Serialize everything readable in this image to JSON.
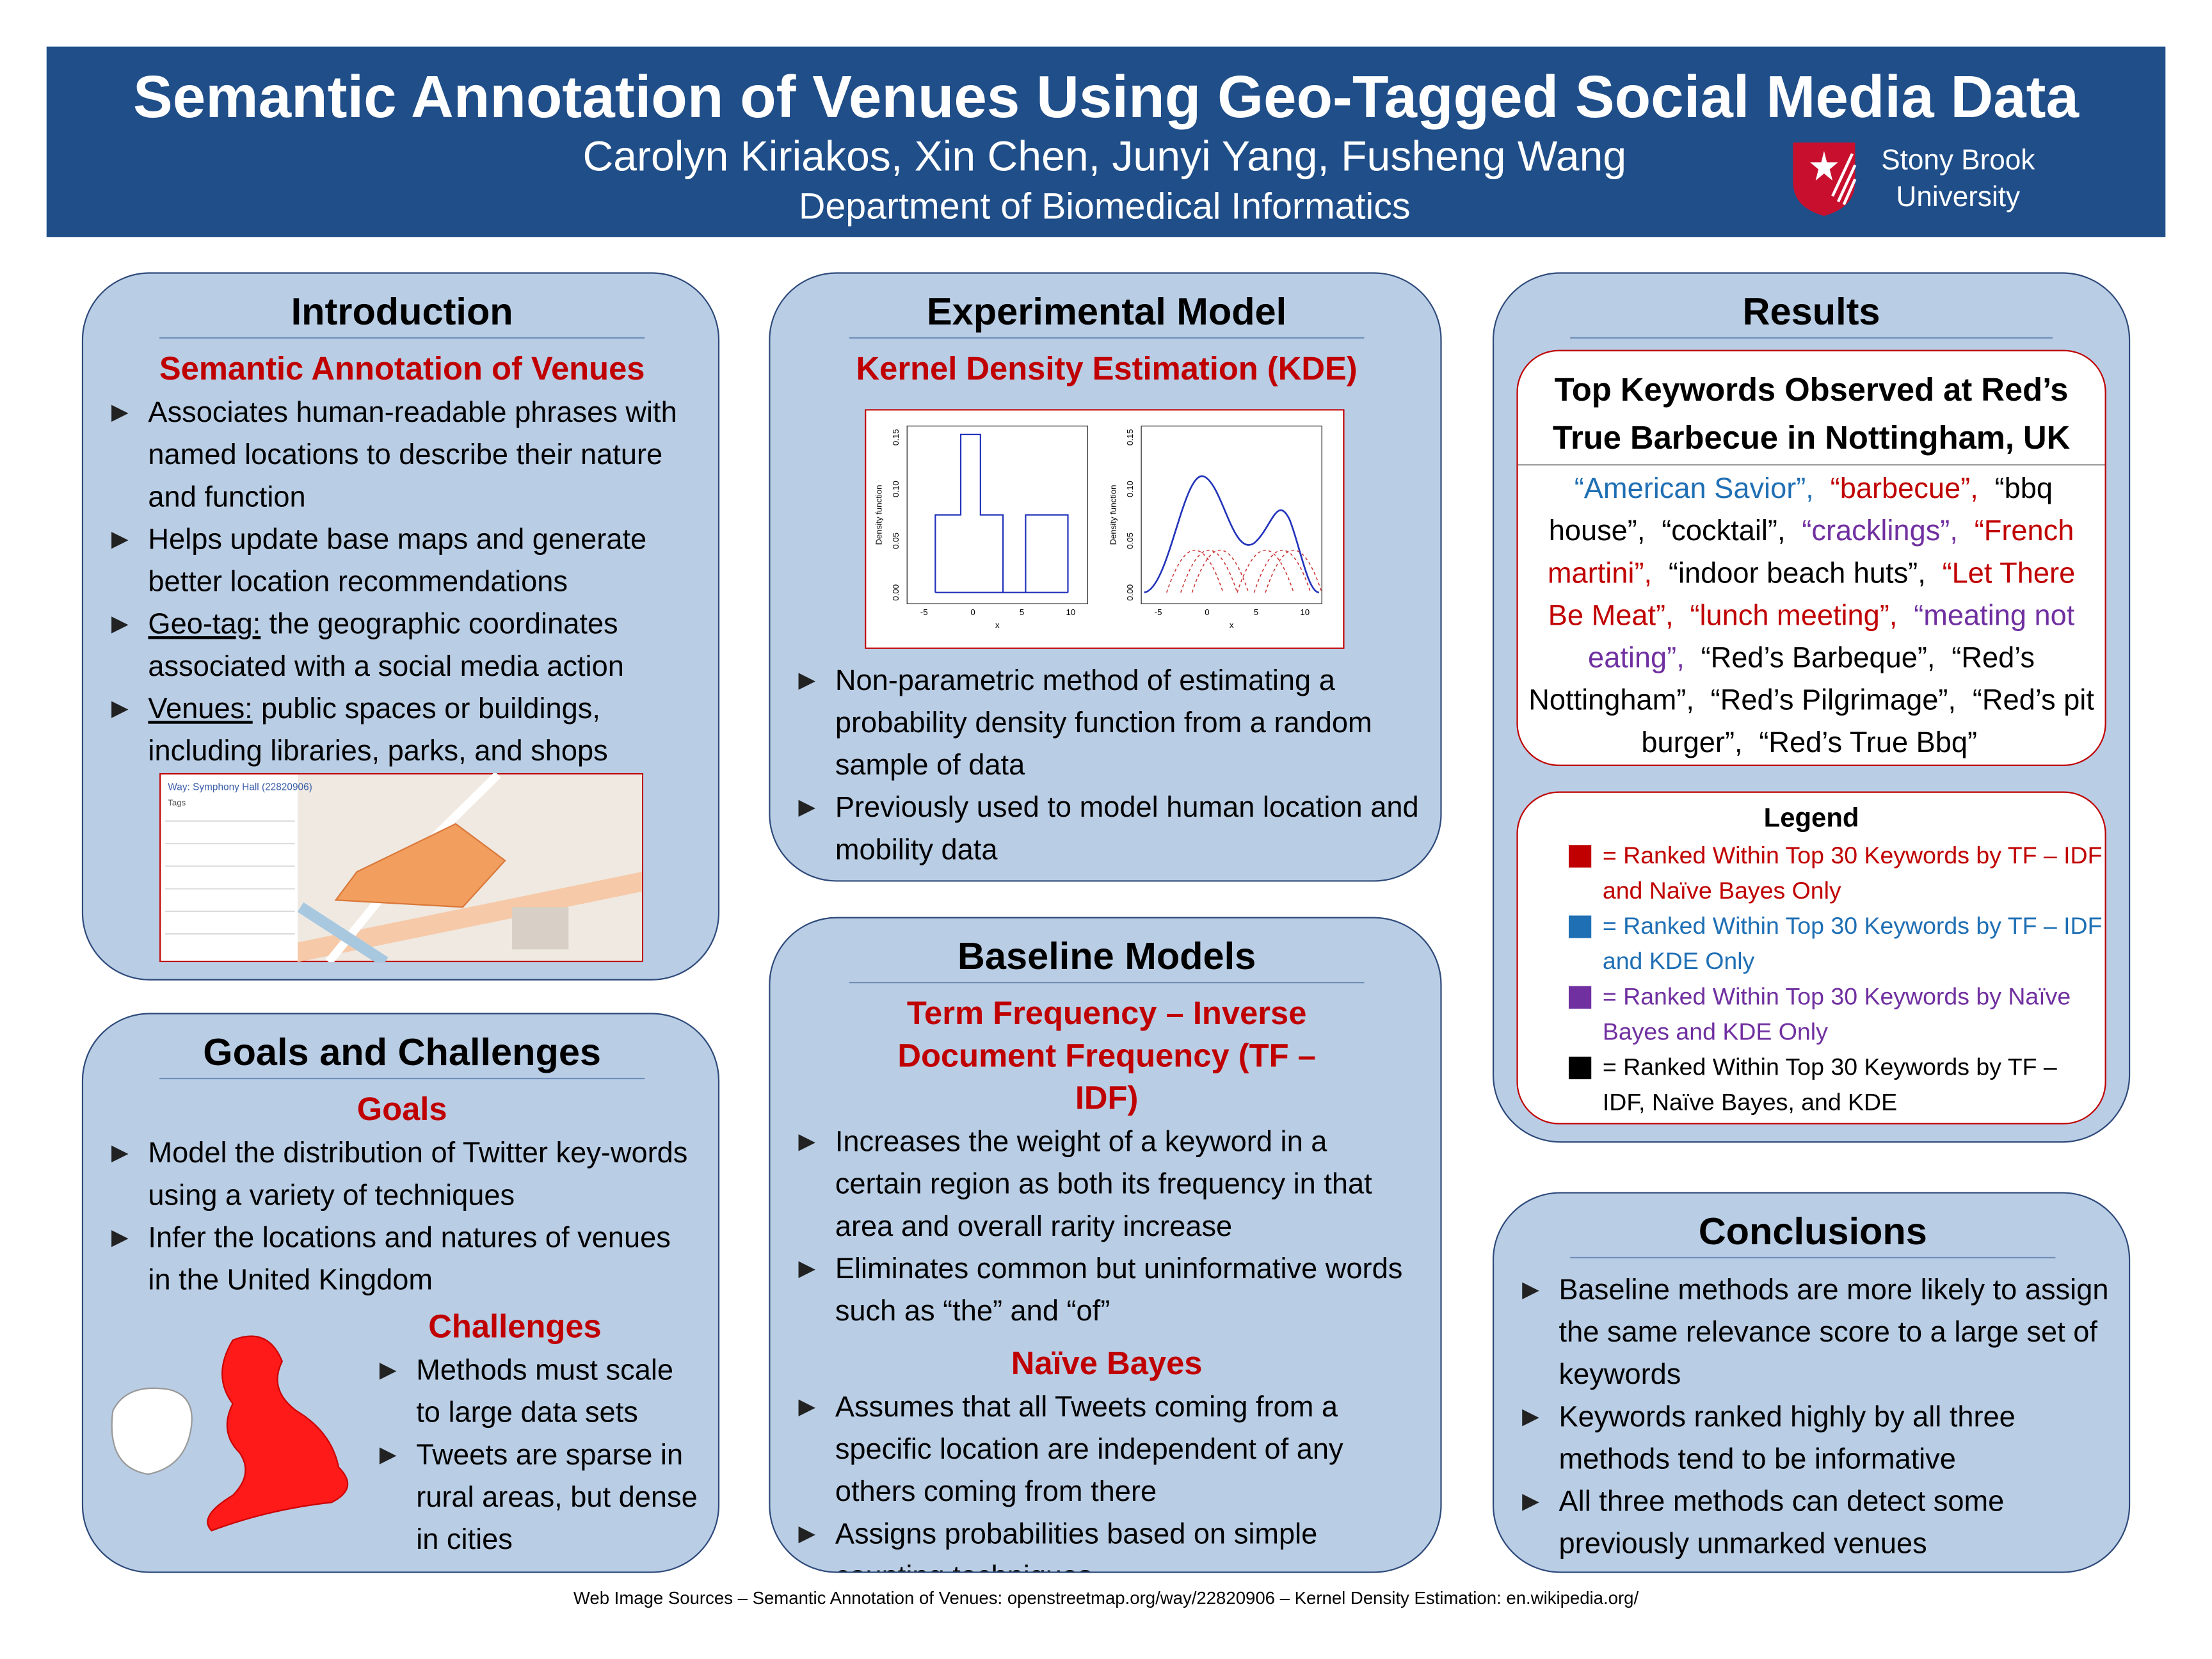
{
  "header": {
    "title": "Semantic Annotation of Venues Using Geo-Tagged Social Media Data",
    "authors": "Carolyn Kiriakos, Xin Chen, Junyi Yang, Fusheng Wang",
    "department": "Department of Biomedical Informatics",
    "university": [
      "Stony Brook",
      "University"
    ]
  },
  "introduction": {
    "heading": "Introduction",
    "subheading": "Semantic Annotation of Venues",
    "bullets": [
      {
        "text": "Associates human-readable phrases with named locations to describe their nature and function"
      },
      {
        "text": "Helps update base maps and generate better location recommendations"
      },
      {
        "term": "Geo-tag:",
        "text": "the geographic coordinates associated with a social media action"
      },
      {
        "term": "Venues:",
        "text": "public spaces or buildings, including libraries, parks, and shops"
      }
    ],
    "map_title": "Way: Symphony Hall (22820906)",
    "map_tags": "Tags"
  },
  "goals": {
    "heading": "Goals and Challenges",
    "goals_heading": "Goals",
    "goals": [
      "Model the distribution of Twitter key-words using a variety of techniques",
      "Infer the locations and natures of venues in the United Kingdom"
    ],
    "challenges_heading": "Challenges",
    "challenges": [
      "Methods must scale to large data sets",
      "Tweets are sparse in rural areas, but dense in cities"
    ]
  },
  "experimental": {
    "heading": "Experimental Model",
    "subheading": "Kernel Density Estimation (KDE)",
    "figure": {
      "y_label": "Density function",
      "x_label": "x",
      "yticks": [
        "0.00",
        "0.05",
        "0.10",
        "0.15"
      ],
      "xticks": [
        "-5",
        "0",
        "5",
        "10"
      ]
    },
    "bullets": [
      "Non-parametric method of estimating a probability density function from a random sample of data",
      "Previously used to model human location and mobility data"
    ]
  },
  "baseline": {
    "heading": "Baseline Models",
    "sections": [
      {
        "heading": "Term Frequency – Inverse Document Frequency (TF – IDF)",
        "bullets": [
          "Increases the weight of a keyword in a certain region as both its frequency in that area and overall rarity increase",
          "Eliminates common but uninformative words such as “the” and “of”"
        ]
      },
      {
        "heading": "Naïve Bayes",
        "bullets": [
          "Assumes that all Tweets coming from a specific location are independent of any others coming from there",
          "Assigns probabilities based on simple counting techniques"
        ]
      }
    ]
  },
  "results": {
    "heading": "Results",
    "box_title": "Top Keywords Observed at Red’s True Barbecue in Nottingham, UK",
    "keywords": [
      {
        "text": "“American Savior”,",
        "color": "#1f6fb4"
      },
      {
        "text": "“barbecue”,",
        "color": "#c00000"
      },
      {
        "text": "“bbq house”,",
        "color": "#000000"
      },
      {
        "text": "“cocktail”,",
        "color": "#000000"
      },
      {
        "text": "“cracklings”,",
        "color": "#7030a0"
      },
      {
        "text": "“French martini”,",
        "color": "#c00000"
      },
      {
        "text": "“indoor beach huts”,",
        "color": "#000000"
      },
      {
        "text": "“Let There Be Meat”,",
        "color": "#c00000"
      },
      {
        "text": "“lunch meeting”,",
        "color": "#c00000"
      },
      {
        "text": "“meating not eating”,",
        "color": "#7030a0"
      },
      {
        "text": "“Red’s Barbeque”,",
        "color": "#000000"
      },
      {
        "text": "“Red’s Nottingham”,",
        "color": "#000000"
      },
      {
        "text": "“Red’s Pilgrimage”,",
        "color": "#000000"
      },
      {
        "text": "“Red’s pit burger”,",
        "color": "#000000"
      },
      {
        "text": "“Red’s True Bbq”",
        "color": "#000000"
      }
    ],
    "legend": {
      "title": "Legend",
      "items": [
        {
          "color": "#c00000",
          "text": "= Ranked Within Top 30 Keywords by TF – IDF and Naïve Bayes Only"
        },
        {
          "color": "#1f6fb4",
          "text": "= Ranked Within Top 30 Keywords by TF – IDF and KDE Only"
        },
        {
          "color": "#7030a0",
          "text": "= Ranked Within Top 30 Keywords by Naïve Bayes and KDE Only"
        },
        {
          "color": "#000000",
          "text": "= Ranked Within Top 30 Keywords by TF – IDF, Naïve Bayes, and KDE"
        }
      ]
    }
  },
  "conclusions": {
    "heading": "Conclusions",
    "bullets": [
      "Baseline methods are more likely to assign the same relevance score to a large set of keywords",
      "Keywords ranked highly by all three methods tend to be informative",
      "All three methods can detect some previously unmarked venues"
    ]
  },
  "footer": "Web Image Sources – Semantic Annotation of Venues: openstreetmap.org/way/22820906 – Kernel Density Estimation: en.wikipedia.org/"
}
